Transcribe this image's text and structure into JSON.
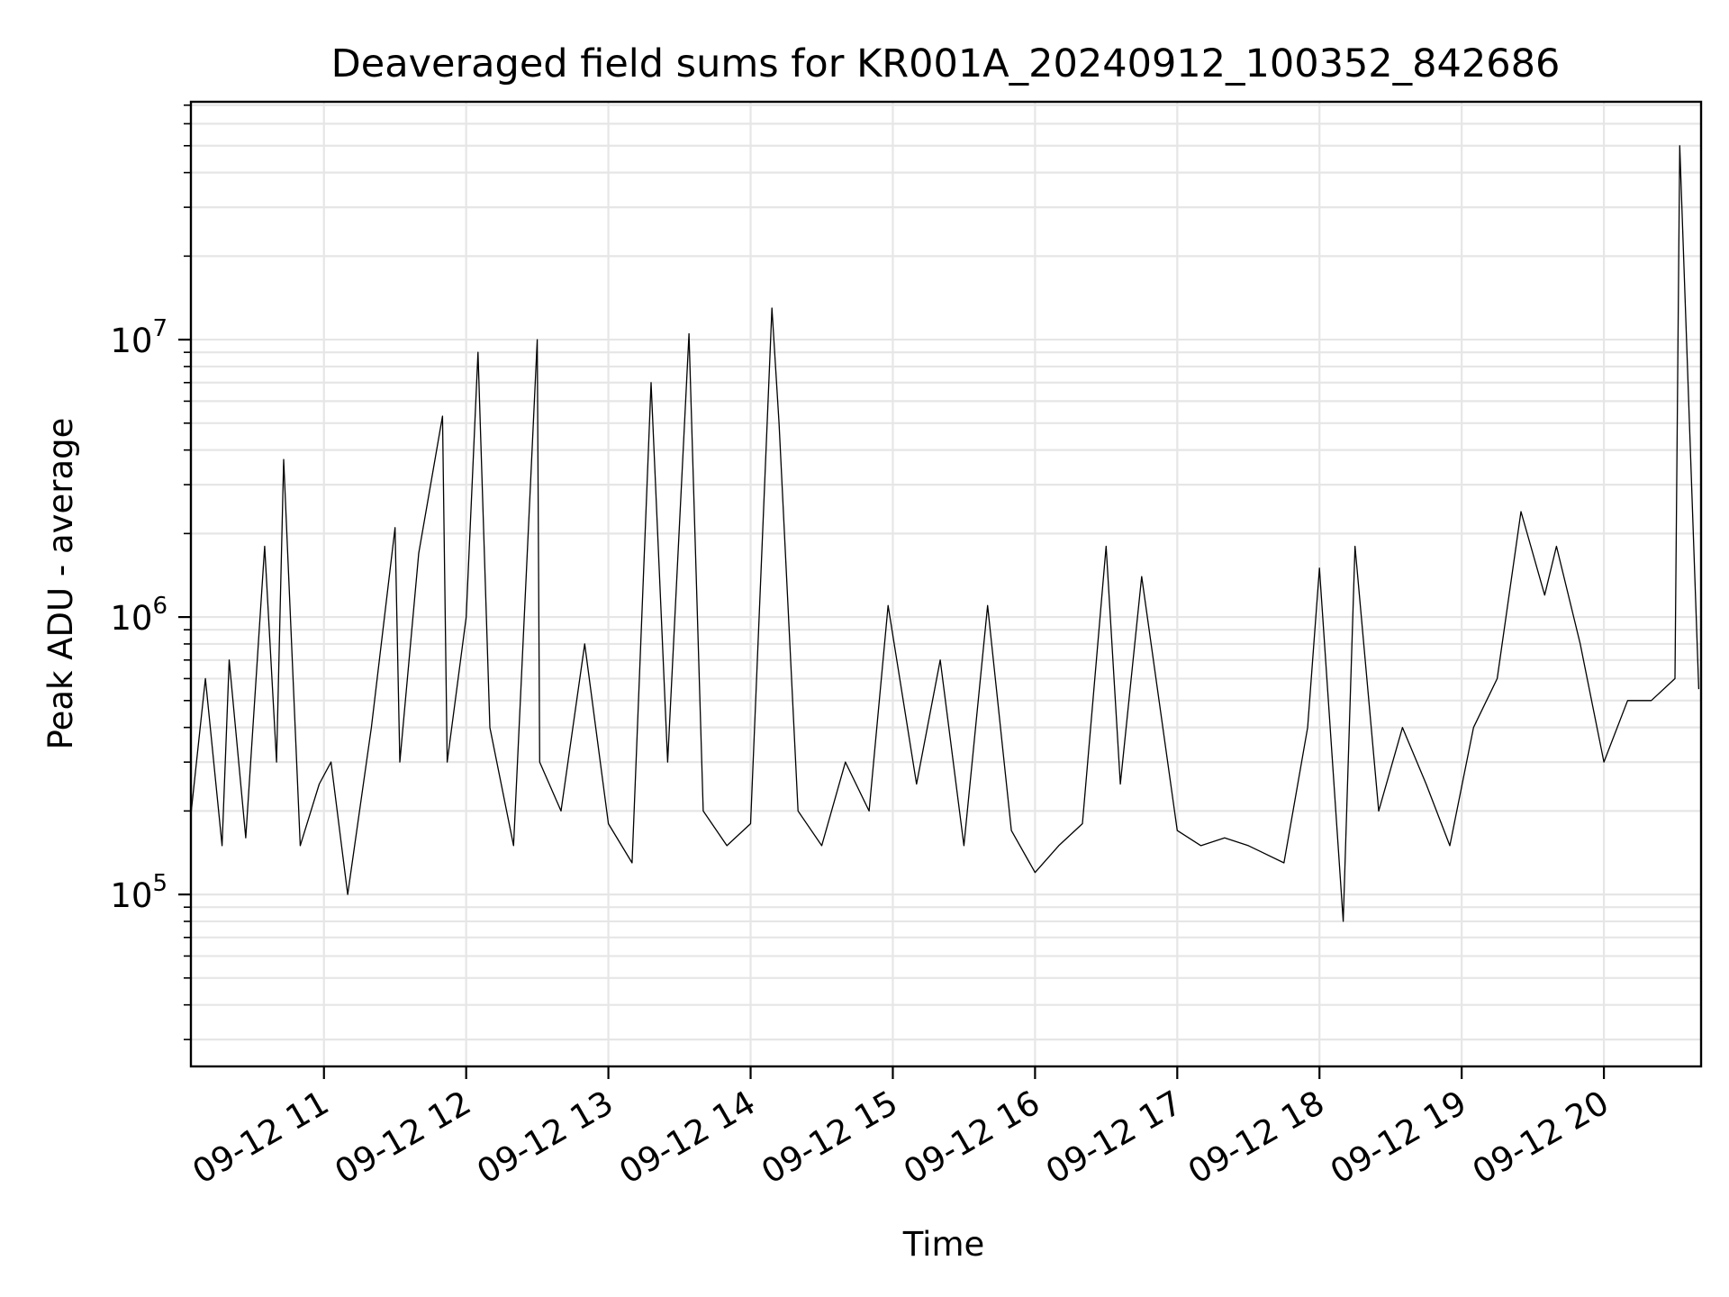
{
  "chart_data": {
    "type": "line",
    "title": "Deaveraged field sums for KR001A_20240912_100352_842686",
    "xlabel": "Time",
    "ylabel": "Peak ADU - average",
    "yscale": "log",
    "ylim": [
      24000,
      72000000
    ],
    "xlim": [
      "2024-09-12T10:03:52",
      "2024-09-12T20:41:00"
    ],
    "grid": "major and minor",
    "legend": "none",
    "x_ticks": [
      {
        "value": "2024-09-12T11:00:00",
        "label": "09-12 11"
      },
      {
        "value": "2024-09-12T12:00:00",
        "label": "09-12 12"
      },
      {
        "value": "2024-09-12T13:00:00",
        "label": "09-12 13"
      },
      {
        "value": "2024-09-12T14:00:00",
        "label": "09-12 14"
      },
      {
        "value": "2024-09-12T15:00:00",
        "label": "09-12 15"
      },
      {
        "value": "2024-09-12T16:00:00",
        "label": "09-12 16"
      },
      {
        "value": "2024-09-12T17:00:00",
        "label": "09-12 17"
      },
      {
        "value": "2024-09-12T18:00:00",
        "label": "09-12 18"
      },
      {
        "value": "2024-09-12T19:00:00",
        "label": "09-12 19"
      },
      {
        "value": "2024-09-12T20:00:00",
        "label": "09-12 20"
      }
    ],
    "y_ticks": [
      {
        "value": 100000,
        "base": "10",
        "exp": "5"
      },
      {
        "value": 1000000,
        "base": "10",
        "exp": "6"
      },
      {
        "value": 10000000,
        "base": "10",
        "exp": "7"
      }
    ],
    "line_color": "#000000",
    "series": [
      {
        "values_note_free": true,
        "x": [
          "2024-09-12T10:04:00",
          "2024-09-12T10:10:00",
          "2024-09-12T10:17:00",
          "2024-09-12T10:20:00",
          "2024-09-12T10:27:00",
          "2024-09-12T10:35:00",
          "2024-09-12T10:40:00",
          "2024-09-12T10:43:00",
          "2024-09-12T10:50:00",
          "2024-09-12T10:58:00",
          "2024-09-12T11:03:00",
          "2024-09-12T11:10:00",
          "2024-09-12T11:20:00",
          "2024-09-12T11:30:00",
          "2024-09-12T11:32:00",
          "2024-09-12T11:40:00",
          "2024-09-12T11:50:00",
          "2024-09-12T11:52:00",
          "2024-09-12T12:00:00",
          "2024-09-12T12:05:00",
          "2024-09-12T12:10:00",
          "2024-09-12T12:20:00",
          "2024-09-12T12:30:00",
          "2024-09-12T12:31:00",
          "2024-09-12T12:40:00",
          "2024-09-12T12:50:00",
          "2024-09-12T13:00:00",
          "2024-09-12T13:10:00",
          "2024-09-12T13:18:00",
          "2024-09-12T13:25:00",
          "2024-09-12T13:34:00",
          "2024-09-12T13:40:00",
          "2024-09-12T13:50:00",
          "2024-09-12T14:00:00",
          "2024-09-12T14:09:00",
          "2024-09-12T14:12:00",
          "2024-09-12T14:20:00",
          "2024-09-12T14:30:00",
          "2024-09-12T14:40:00",
          "2024-09-12T14:50:00",
          "2024-09-12T14:58:00",
          "2024-09-12T15:10:00",
          "2024-09-12T15:20:00",
          "2024-09-12T15:30:00",
          "2024-09-12T15:40:00",
          "2024-09-12T15:50:00",
          "2024-09-12T16:00:00",
          "2024-09-12T16:10:00",
          "2024-09-12T16:20:00",
          "2024-09-12T16:30:00",
          "2024-09-12T16:36:00",
          "2024-09-12T16:45:00",
          "2024-09-12T17:00:00",
          "2024-09-12T17:10:00",
          "2024-09-12T17:20:00",
          "2024-09-12T17:30:00",
          "2024-09-12T17:45:00",
          "2024-09-12T17:55:00",
          "2024-09-12T18:00:00",
          "2024-09-12T18:10:00",
          "2024-09-12T18:15:00",
          "2024-09-12T18:25:00",
          "2024-09-12T18:35:00",
          "2024-09-12T18:45:00",
          "2024-09-12T18:55:00",
          "2024-09-12T19:05:00",
          "2024-09-12T19:15:00",
          "2024-09-12T19:25:00",
          "2024-09-12T19:35:00",
          "2024-09-12T19:40:00",
          "2024-09-12T19:50:00",
          "2024-09-12T20:00:00",
          "2024-09-12T20:10:00",
          "2024-09-12T20:20:00",
          "2024-09-12T20:30:00",
          "2024-09-12T20:32:00",
          "2024-09-12T20:40:00"
        ],
        "values": [
          200000,
          600000,
          150000,
          700000,
          160000,
          1800000,
          300000,
          3700000,
          150000,
          250000,
          300000,
          100000,
          400000,
          2100000,
          300000,
          1700000,
          5300000,
          300000,
          1000000,
          9000000,
          400000,
          150000,
          10000000,
          300000,
          200000,
          800000,
          180000,
          130000,
          7000000,
          300000,
          10500000,
          200000,
          150000,
          180000,
          13000000,
          5000000,
          200000,
          150000,
          300000,
          200000,
          1100000,
          250000,
          700000,
          150000,
          1100000,
          170000,
          120000,
          150000,
          180000,
          1800000,
          250000,
          1400000,
          170000,
          150000,
          160000,
          150000,
          130000,
          400000,
          1500000,
          80000,
          1800000,
          200000,
          400000,
          250000,
          150000,
          400000,
          600000,
          2400000,
          1200000,
          1800000,
          800000,
          300000,
          500000,
          500000,
          600000,
          50000000,
          550000
        ]
      }
    ]
  }
}
